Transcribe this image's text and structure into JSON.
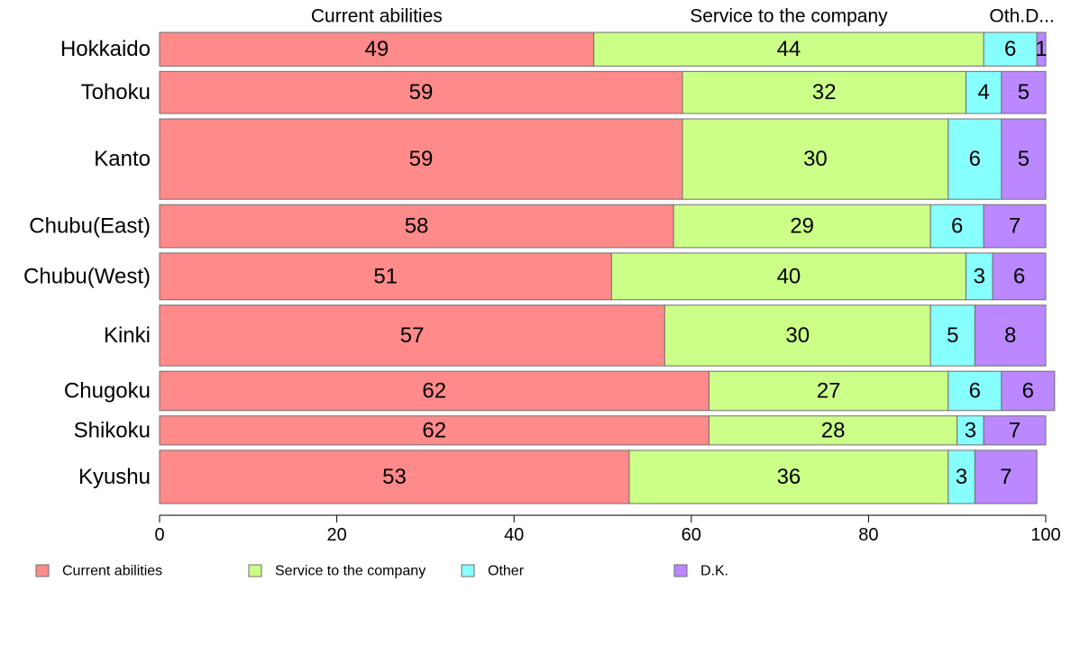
{
  "chart_data": {
    "type": "bar",
    "orientation": "horizontal",
    "stacked": true,
    "categories": [
      "Hokkaido",
      "Tohoku",
      "Kanto",
      "Chubu(East)",
      "Chubu(West)",
      "Kinki",
      "Chugoku",
      "Shikoku",
      "Kyushu"
    ],
    "series": [
      {
        "name": "Current abilities",
        "color": "#ff8a8a",
        "values": [
          49,
          59,
          59,
          58,
          51,
          57,
          62,
          62,
          53
        ]
      },
      {
        "name": "Service to the company",
        "color": "#ccff88",
        "values": [
          44,
          32,
          30,
          29,
          40,
          30,
          27,
          28,
          36
        ]
      },
      {
        "name": "Other",
        "color": "#88ffff",
        "values": [
          6,
          4,
          6,
          6,
          3,
          5,
          6,
          3,
          3
        ]
      },
      {
        "name": "D.K.",
        "color": "#bb88ff",
        "values": [
          1,
          5,
          5,
          7,
          6,
          8,
          6,
          7,
          7
        ]
      }
    ],
    "bar_relative_thickness": [
      36,
      45,
      86,
      46,
      50,
      65,
      42,
      31,
      57
    ],
    "top_labels": [
      "Current abilities",
      "Service to the company",
      "Oth.D..."
    ],
    "xlim": [
      0,
      100
    ],
    "xticks": [
      0,
      20,
      40,
      60,
      80,
      100
    ],
    "grid": false,
    "legend_position": "bottom"
  }
}
